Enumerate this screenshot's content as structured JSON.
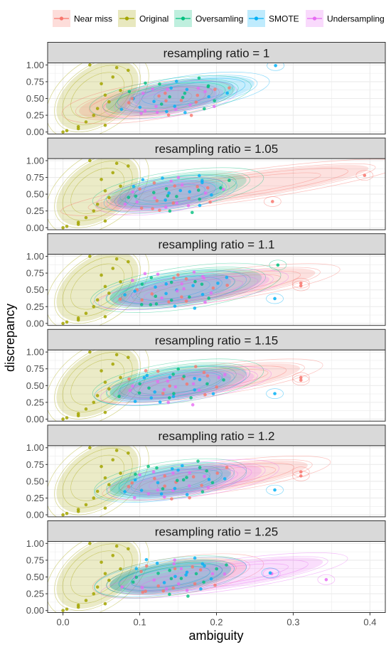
{
  "colors": {
    "near_miss": "#F8766D",
    "original": "#A3A500",
    "oversampling": "#00BF7D",
    "smote": "#00B0F6",
    "undersampling": "#E76BF3",
    "strip_bg": "#D9D9D9",
    "grid": "#EBEBEB",
    "panel_border": "#333333"
  },
  "chart_data": {
    "type": "scatter",
    "title": "",
    "xlabel": "ambiguity",
    "ylabel": "discrepancy",
    "xlim": [
      -0.02,
      0.42
    ],
    "ylim": [
      -0.03,
      1.03
    ],
    "x_ticks": [
      0.0,
      0.1,
      0.2,
      0.3,
      0.4
    ],
    "x_tick_labels": [
      "0.0",
      "0.1",
      "0.2",
      "0.3",
      "0.4"
    ],
    "y_ticks": [
      0.0,
      0.25,
      0.5,
      0.75,
      1.0
    ],
    "y_tick_labels": [
      "0.00",
      "0.25",
      "0.50",
      "0.75",
      "1.00"
    ],
    "grid": true,
    "legend_position": "top",
    "legend": [
      {
        "key": "near_miss",
        "label": "Near miss"
      },
      {
        "key": "original",
        "label": "Original"
      },
      {
        "key": "oversampling",
        "label": "Oversamling"
      },
      {
        "key": "smote",
        "label": "SMOTE"
      },
      {
        "key": "undersampling",
        "label": "Undersampling"
      }
    ],
    "panels": [
      {
        "strip": "resampling ratio = 1",
        "densities": [
          {
            "series": "original",
            "cx": 0.045,
            "cy": 0.55,
            "rx": 0.06,
            "ry": 0.42
          },
          {
            "series": "near_miss",
            "cx": 0.11,
            "cy": 0.45,
            "rx": 0.09,
            "ry": 0.22
          },
          {
            "series": "oversampling",
            "cx": 0.14,
            "cy": 0.52,
            "rx": 0.085,
            "ry": 0.22
          },
          {
            "series": "smote",
            "cx": 0.17,
            "cy": 0.6,
            "rx": 0.08,
            "ry": 0.2
          },
          {
            "series": "undersampling",
            "cx": 0.14,
            "cy": 0.48,
            "rx": 0.07,
            "ry": 0.2
          }
        ],
        "outliers": [
          {
            "series": "smote",
            "x": 0.277,
            "y": 0.99
          }
        ]
      },
      {
        "strip": "resampling ratio = 1.05",
        "densities": [
          {
            "series": "original",
            "cx": 0.045,
            "cy": 0.55,
            "rx": 0.06,
            "ry": 0.42
          },
          {
            "series": "near_miss",
            "cx": 0.22,
            "cy": 0.6,
            "rx": 0.18,
            "ry": 0.18
          },
          {
            "series": "oversampling",
            "cx": 0.15,
            "cy": 0.57,
            "rx": 0.09,
            "ry": 0.22
          },
          {
            "series": "smote",
            "cx": 0.14,
            "cy": 0.5,
            "rx": 0.07,
            "ry": 0.2
          },
          {
            "series": "undersampling",
            "cx": 0.13,
            "cy": 0.47,
            "rx": 0.07,
            "ry": 0.2
          }
        ],
        "outliers": [
          {
            "series": "near_miss",
            "x": 0.393,
            "y": 0.78
          },
          {
            "series": "near_miss",
            "x": 0.273,
            "y": 0.39
          }
        ]
      },
      {
        "strip": "resampling ratio = 1.1",
        "densities": [
          {
            "series": "original",
            "cx": 0.045,
            "cy": 0.55,
            "rx": 0.06,
            "ry": 0.42
          },
          {
            "series": "near_miss",
            "cx": 0.2,
            "cy": 0.55,
            "rx": 0.13,
            "ry": 0.18
          },
          {
            "series": "oversampling",
            "cx": 0.16,
            "cy": 0.53,
            "rx": 0.1,
            "ry": 0.25
          },
          {
            "series": "smote",
            "cx": 0.14,
            "cy": 0.5,
            "rx": 0.08,
            "ry": 0.2
          },
          {
            "series": "undersampling",
            "cx": 0.17,
            "cy": 0.5,
            "rx": 0.1,
            "ry": 0.18
          }
        ],
        "outliers": [
          {
            "series": "near_miss",
            "x": 0.31,
            "y": 0.6
          },
          {
            "series": "near_miss",
            "x": 0.31,
            "y": 0.56
          },
          {
            "series": "smote",
            "x": 0.276,
            "y": 0.37
          },
          {
            "series": "oversampling",
            "x": 0.28,
            "y": 0.87
          }
        ]
      },
      {
        "strip": "resampling ratio = 1.15",
        "densities": [
          {
            "series": "original",
            "cx": 0.045,
            "cy": 0.55,
            "rx": 0.06,
            "ry": 0.42
          },
          {
            "series": "near_miss",
            "cx": 0.19,
            "cy": 0.57,
            "rx": 0.12,
            "ry": 0.18
          },
          {
            "series": "oversampling",
            "cx": 0.15,
            "cy": 0.55,
            "rx": 0.09,
            "ry": 0.24
          },
          {
            "series": "smote",
            "cx": 0.14,
            "cy": 0.5,
            "rx": 0.08,
            "ry": 0.2
          },
          {
            "series": "undersampling",
            "cx": 0.16,
            "cy": 0.5,
            "rx": 0.09,
            "ry": 0.18
          }
        ],
        "outliers": [
          {
            "series": "near_miss",
            "x": 0.31,
            "y": 0.62
          },
          {
            "series": "near_miss",
            "x": 0.31,
            "y": 0.58
          },
          {
            "series": "smote",
            "x": 0.276,
            "y": 0.38
          }
        ]
      },
      {
        "strip": "resampling ratio = 1.2",
        "densities": [
          {
            "series": "original",
            "cx": 0.045,
            "cy": 0.55,
            "rx": 0.06,
            "ry": 0.42
          },
          {
            "series": "near_miss",
            "cx": 0.2,
            "cy": 0.55,
            "rx": 0.12,
            "ry": 0.18
          },
          {
            "series": "oversampling",
            "cx": 0.14,
            "cy": 0.52,
            "rx": 0.08,
            "ry": 0.22
          },
          {
            "series": "smote",
            "cx": 0.14,
            "cy": 0.48,
            "rx": 0.08,
            "ry": 0.2
          },
          {
            "series": "undersampling",
            "cx": 0.17,
            "cy": 0.52,
            "rx": 0.09,
            "ry": 0.2
          }
        ],
        "outliers": [
          {
            "series": "near_miss",
            "x": 0.31,
            "y": 0.64
          },
          {
            "series": "near_miss",
            "x": 0.31,
            "y": 0.58
          },
          {
            "series": "smote",
            "x": 0.276,
            "y": 0.37
          }
        ]
      },
      {
        "strip": "resampling ratio = 1.25",
        "densities": [
          {
            "series": "original",
            "cx": 0.045,
            "cy": 0.55,
            "rx": 0.06,
            "ry": 0.42
          },
          {
            "series": "near_miss",
            "cx": 0.15,
            "cy": 0.52,
            "rx": 0.09,
            "ry": 0.22
          },
          {
            "series": "oversampling",
            "cx": 0.14,
            "cy": 0.5,
            "rx": 0.08,
            "ry": 0.22
          },
          {
            "series": "smote",
            "cx": 0.14,
            "cy": 0.5,
            "rx": 0.08,
            "ry": 0.2
          },
          {
            "series": "undersampling",
            "cx": 0.21,
            "cy": 0.52,
            "rx": 0.13,
            "ry": 0.18
          }
        ],
        "outliers": [
          {
            "series": "undersampling",
            "x": 0.343,
            "y": 0.46
          },
          {
            "series": "undersampling",
            "x": 0.272,
            "y": 0.55
          },
          {
            "series": "smote",
            "x": 0.27,
            "y": 0.56
          }
        ]
      }
    ],
    "original_points": [
      {
        "x": 0.0,
        "y": 0.0
      },
      {
        "x": 0.005,
        "y": 0.02
      },
      {
        "x": 0.02,
        "y": 0.05
      },
      {
        "x": 0.02,
        "y": 0.08
      },
      {
        "x": 0.035,
        "y": 1.0
      },
      {
        "x": 0.055,
        "y": 0.55
      },
      {
        "x": 0.06,
        "y": 0.45
      },
      {
        "x": 0.07,
        "y": 0.96
      },
      {
        "x": 0.085,
        "y": 0.92
      },
      {
        "x": 0.05,
        "y": 0.72
      },
      {
        "x": 0.045,
        "y": 0.35
      },
      {
        "x": 0.03,
        "y": 0.15
      },
      {
        "x": 0.065,
        "y": 0.82
      },
      {
        "x": 0.055,
        "y": 0.1
      },
      {
        "x": 0.04,
        "y": 0.25
      },
      {
        "x": 0.075,
        "y": 0.62
      }
    ],
    "cloud_points": [
      [
        0.086,
        0.433
      ],
      [
        0.091,
        0.616
      ],
      [
        0.101,
        0.368
      ],
      [
        0.112,
        0.295
      ],
      [
        0.124,
        0.541
      ],
      [
        0.131,
        0.402
      ],
      [
        0.139,
        0.676
      ],
      [
        0.147,
        0.351
      ],
      [
        0.152,
        0.488
      ],
      [
        0.158,
        0.578
      ],
      [
        0.163,
        0.312
      ],
      [
        0.171,
        0.629
      ],
      [
        0.178,
        0.448
      ],
      [
        0.184,
        0.705
      ],
      [
        0.191,
        0.524
      ],
      [
        0.195,
        0.392
      ],
      [
        0.202,
        0.611
      ],
      [
        0.108,
        0.742
      ],
      [
        0.118,
        0.464
      ],
      [
        0.127,
        0.279
      ],
      [
        0.135,
        0.586
      ],
      [
        0.144,
        0.503
      ],
      [
        0.151,
        0.737
      ],
      [
        0.166,
        0.417
      ],
      [
        0.174,
        0.552
      ],
      [
        0.181,
        0.339
      ],
      [
        0.096,
        0.513
      ],
      [
        0.105,
        0.598
      ],
      [
        0.143,
        0.258
      ],
      [
        0.187,
        0.668
      ],
      [
        0.156,
        0.642
      ],
      [
        0.122,
        0.382
      ],
      [
        0.168,
        0.231
      ],
      [
        0.198,
        0.468
      ],
      [
        0.079,
        0.351
      ],
      [
        0.114,
        0.659
      ],
      [
        0.137,
        0.452
      ],
      [
        0.173,
        0.781
      ],
      [
        0.209,
        0.562
      ],
      [
        0.099,
        0.271
      ],
      [
        0.216,
        0.681
      ],
      [
        0.128,
        0.723
      ],
      [
        0.149,
        0.389
      ],
      [
        0.183,
        0.592
      ],
      [
        0.093,
        0.477
      ],
      [
        0.162,
        0.522
      ],
      [
        0.134,
        0.308
      ],
      [
        0.141,
        0.612
      ]
    ]
  }
}
